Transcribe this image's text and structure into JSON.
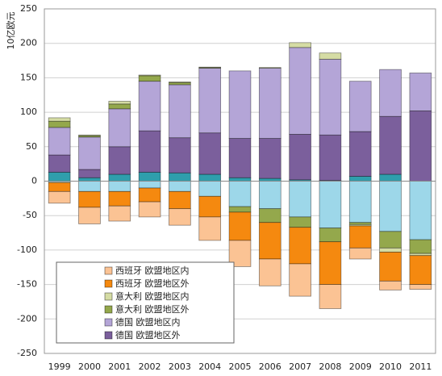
{
  "chart_data": {
    "type": "stacked_bar",
    "y_label": "10亿欧元",
    "categories": [
      "1999",
      "2000",
      "2001",
      "2002",
      "2003",
      "2004",
      "2005",
      "2006",
      "2007",
      "2008",
      "2009",
      "2010",
      "2011"
    ],
    "series": [
      {
        "name": "西班牙 欧盟地区内",
        "color": "#fbc394",
        "values": [
          -17,
          -24,
          -22,
          -22,
          -24,
          -34,
          -38,
          -39,
          -47,
          -35,
          -16,
          -13,
          -7
        ]
      },
      {
        "name": "西班牙 欧盟地区外",
        "color": "#f5890f",
        "values": [
          -13,
          -23,
          -21,
          -20,
          -25,
          -30,
          -41,
          -53,
          -53,
          -62,
          -32,
          -42,
          -42
        ]
      },
      {
        "name": "意大利 欧盟地区内",
        "color": "#d5dca4",
        "values": [
          5,
          1,
          4,
          1,
          1,
          0.5,
          0,
          1,
          7,
          9,
          -2,
          -6,
          -3
        ]
      },
      {
        "name": "意大利 欧盟地区外",
        "color": "#94a84c",
        "values": [
          9,
          2,
          7,
          8,
          3,
          1,
          -8,
          -20,
          -15,
          -20,
          -3,
          -24,
          -20
        ]
      },
      {
        "name": "德国 欧盟地区内",
        "color": "#b4a5d7",
        "values": [
          40,
          47,
          55,
          72,
          77,
          94,
          98,
          102,
          126,
          110,
          73,
          68,
          55
        ]
      },
      {
        "name": "德国 欧盟地区外",
        "color": "#7b5f9c",
        "values": [
          25,
          12,
          40,
          60,
          51,
          60,
          57,
          58,
          66,
          66,
          65,
          84,
          102
        ]
      },
      {
        "color": "#2f9eac",
        "values": [
          13,
          5,
          10,
          13,
          12,
          10,
          5,
          4,
          2,
          1,
          7,
          10,
          0
        ]
      },
      {
        "color": "#9dd7e9",
        "values": [
          -2,
          -15,
          -15,
          -10,
          -15,
          -22,
          -37,
          -40,
          -52,
          -68,
          -60,
          -73,
          -85
        ]
      }
    ],
    "ylim": [
      -250,
      250
    ],
    "yticks": [
      -250,
      -200,
      -150,
      -100,
      -50,
      0,
      50,
      100,
      150,
      200,
      250
    ],
    "grid": true
  }
}
